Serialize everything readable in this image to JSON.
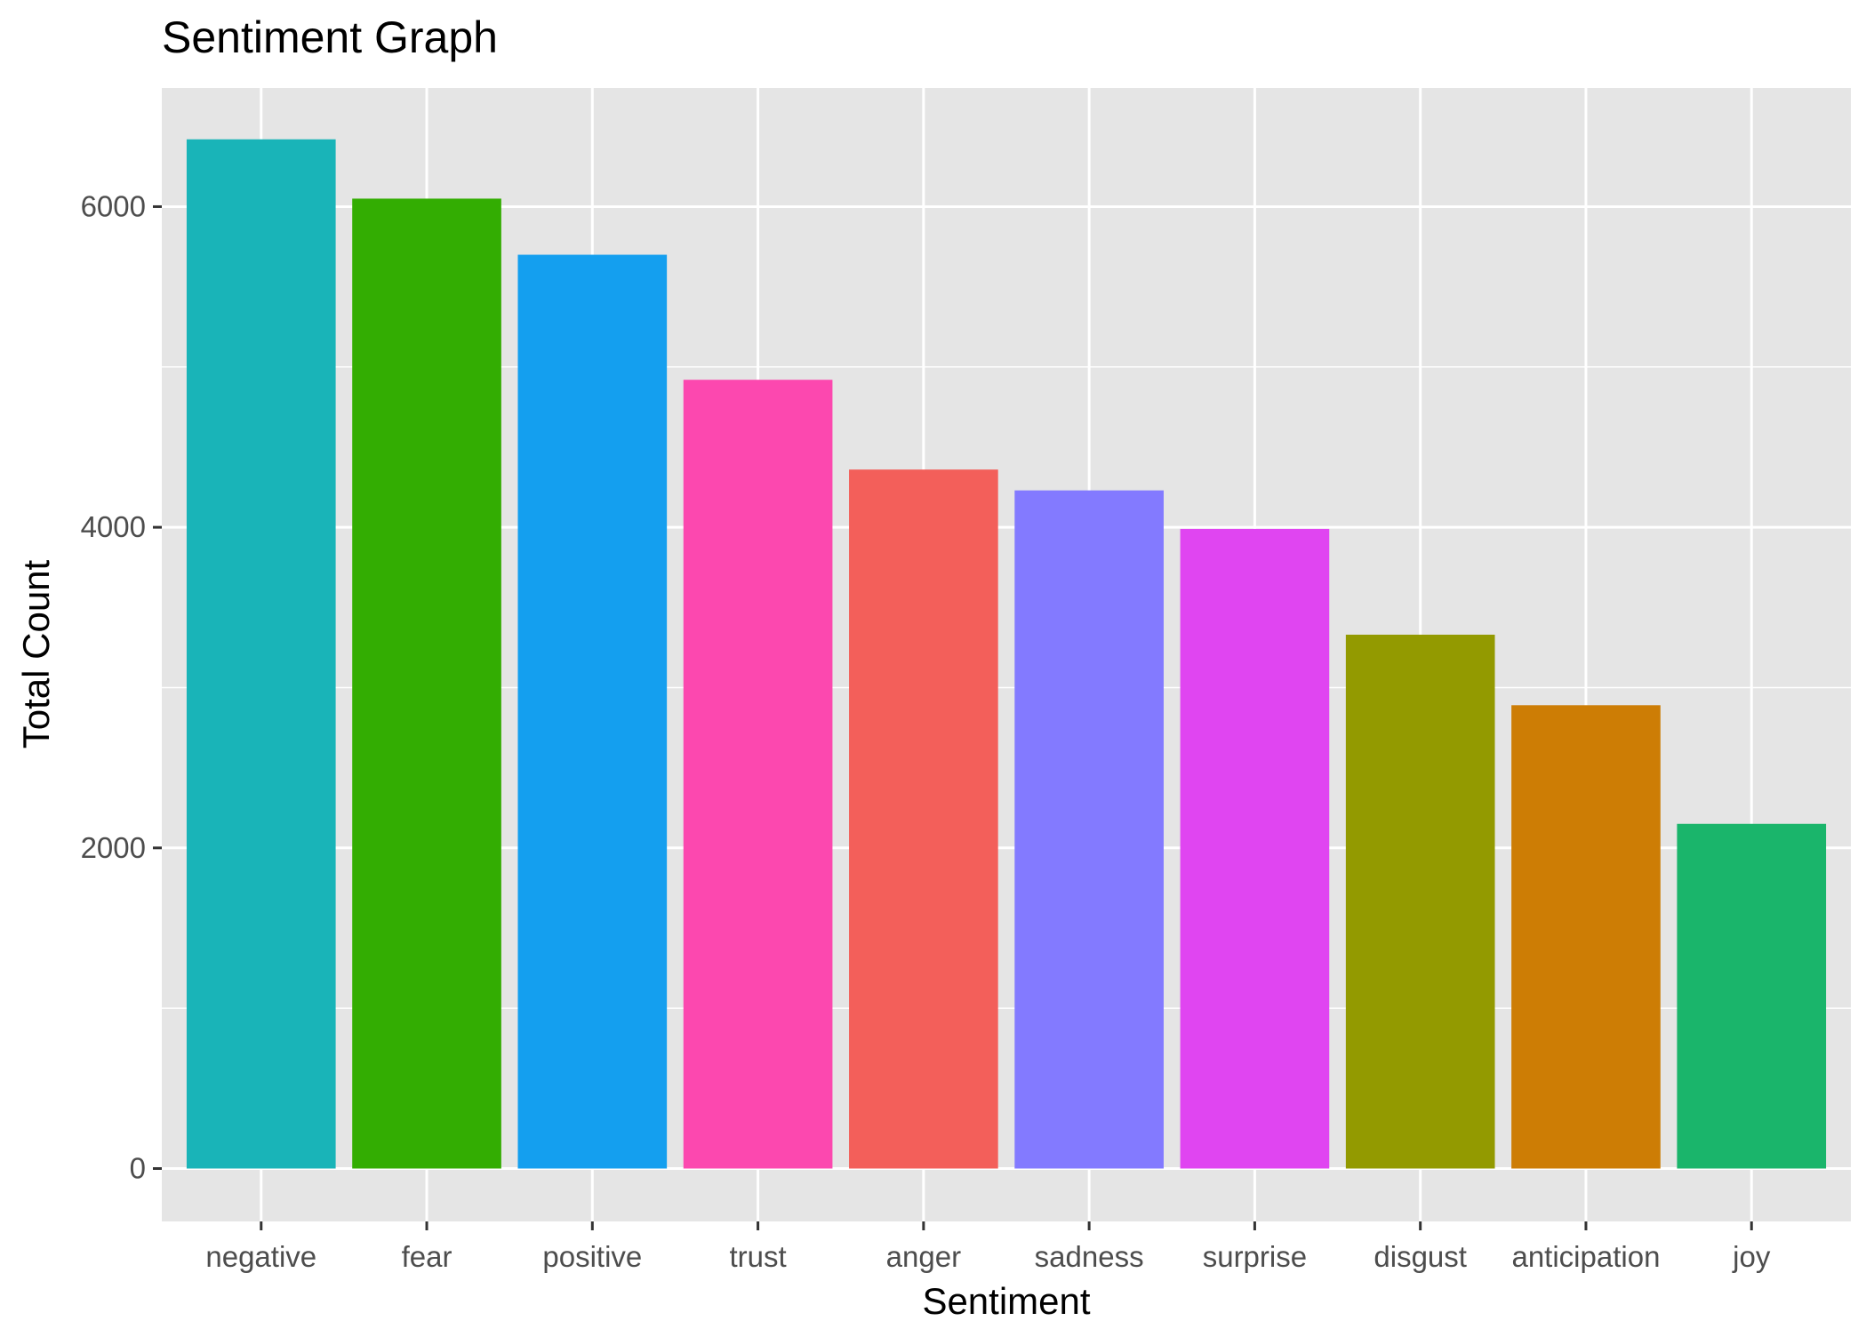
{
  "chart_data": {
    "type": "bar",
    "title": "Sentiment Graph",
    "xlabel": "Sentiment",
    "ylabel": "Total Count",
    "categories": [
      "negative",
      "fear",
      "positive",
      "trust",
      "anger",
      "sadness",
      "surprise",
      "disgust",
      "anticipation",
      "joy"
    ],
    "values": [
      6420,
      6050,
      5700,
      4920,
      4360,
      4230,
      3990,
      3330,
      2890,
      2150
    ],
    "colors": [
      "#19B4B8",
      "#33AD02",
      "#149FEF",
      "#FC48AF",
      "#F35F5A",
      "#837AFF",
      "#E045F1",
      "#939A00",
      "#CD7D05",
      "#1AB56B"
    ],
    "ylim": [
      -330,
      6740
    ],
    "yticks": [
      0,
      2000,
      4000,
      6000
    ],
    "ytick_labels": [
      "0",
      "2000",
      "4000",
      "6000"
    ],
    "grid": true,
    "legend": "none",
    "panel_background": "#E5E5E5",
    "gridline_color": "#FFFFFF"
  }
}
